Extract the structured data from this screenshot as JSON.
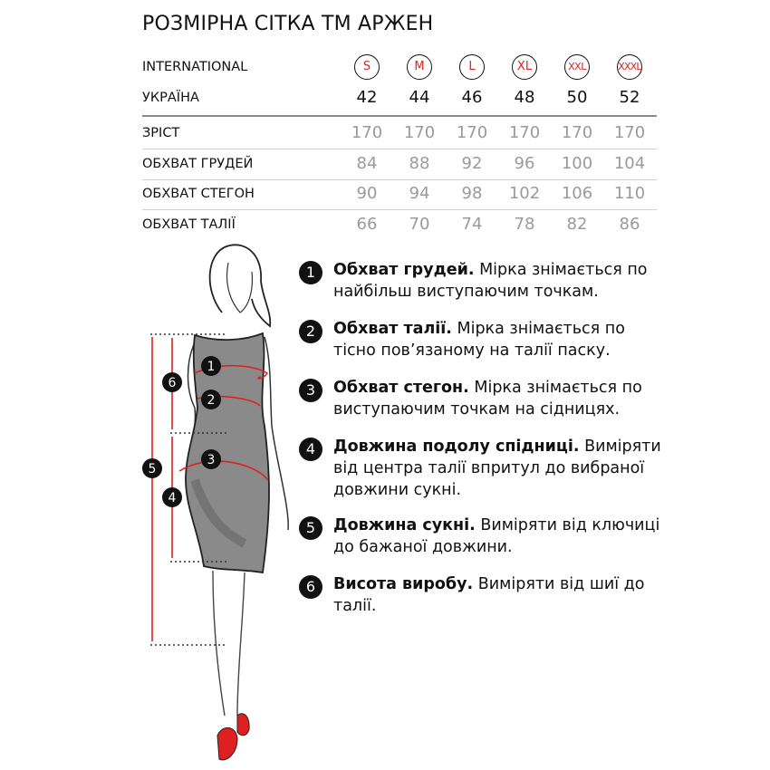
{
  "title": "РОЗМІРНА СІТКА ТМ АРЖЕН",
  "table": {
    "international": {
      "label": "INTERNATIONAL",
      "values": [
        "S",
        "M",
        "L",
        "XL",
        "XXL",
        "XXXL"
      ]
    },
    "ukraine": {
      "label": "УКРАЇНА",
      "values": [
        "42",
        "44",
        "46",
        "48",
        "50",
        "52"
      ]
    },
    "rows": [
      {
        "label": "ЗРІСТ",
        "values": [
          "170",
          "170",
          "170",
          "170",
          "170",
          "170"
        ]
      },
      {
        "label": "ОБХВАТ ГРУДЕЙ",
        "values": [
          "84",
          "88",
          "92",
          "96",
          "100",
          "104"
        ]
      },
      {
        "label": "ОБХВАТ СТЕГОН",
        "values": [
          "90",
          "94",
          "98",
          "102",
          "106",
          "110"
        ]
      },
      {
        "label": "ОБХВАТ ТАЛІЇ",
        "values": [
          "66",
          "70",
          "74",
          "78",
          "82",
          "86"
        ]
      }
    ]
  },
  "instructions": [
    {
      "num": "1",
      "bold": "Обхват грудей.",
      "text": " Мірка знімається по найбільш виступаючим точкам."
    },
    {
      "num": "2",
      "bold": "Обхват талії.",
      "text": " Мірка знімається по тісно пов’язаному на талії паску."
    },
    {
      "num": "3",
      "bold": "Обхват стегон.",
      "text": " Мірка знімається по виступаючим точкам на сідницях."
    },
    {
      "num": "4",
      "bold": "Довжина подолу спідниці.",
      "text": " Виміряти від центра талії впритул до вибраної довжини сукні."
    },
    {
      "num": "5",
      "bold": "Довжина сукні.",
      "text": " Виміряти від ключиці до бажаної довжини."
    },
    {
      "num": "6",
      "bold": "Висота виробу.",
      "text": " Виміряти від шиї до талії."
    }
  ],
  "figure_markers": [
    "1",
    "2",
    "3",
    "4",
    "5",
    "6"
  ],
  "colors": {
    "accent": "#e02020",
    "dress": "#8a8a8a",
    "text_gray": "#9a9a9a"
  }
}
